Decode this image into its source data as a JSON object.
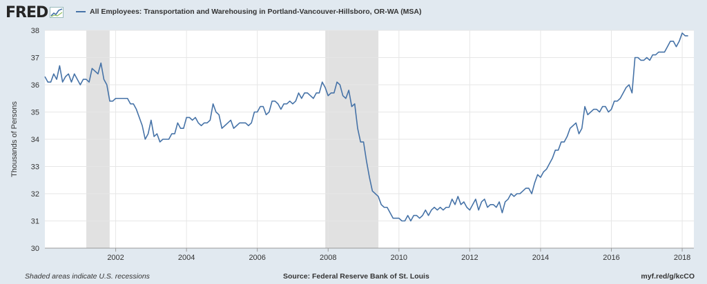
{
  "header": {
    "logo_text": "FRED",
    "legend_label": "All Employees: Transportation and Warehousing in Portland-Vancouver-Hillsboro, OR-WA (MSA)",
    "series_color": "#4572a7"
  },
  "footer": {
    "note": "Shaded areas indicate U.S. recessions",
    "source": "Source: Federal Reserve Bank of St. Louis",
    "link": "myf.red/g/kcCO"
  },
  "chart_data": {
    "type": "line",
    "ylabel": "Thousands of Persons",
    "ylim": [
      30,
      38
    ],
    "yticks": [
      30,
      31,
      32,
      33,
      34,
      35,
      36,
      37,
      38
    ],
    "xlim": [
      2000.0,
      2018.33
    ],
    "xticks": [
      2002,
      2004,
      2006,
      2008,
      2010,
      2012,
      2014,
      2016,
      2018
    ],
    "grid": true,
    "recessions": [
      [
        2001.17,
        2001.83
      ],
      [
        2007.92,
        2009.42
      ]
    ],
    "series": [
      {
        "name": "All Employees: Transportation and Warehousing in Portland-Vancouver-Hillsboro, OR-WA (MSA)",
        "x_start": 2000.0,
        "step": 0.0833333,
        "values": [
          36.3,
          36.1,
          36.1,
          36.4,
          36.2,
          36.7,
          36.1,
          36.3,
          36.4,
          36.1,
          36.4,
          36.2,
          36.0,
          36.2,
          36.2,
          36.1,
          36.6,
          36.5,
          36.4,
          36.8,
          36.2,
          36.0,
          35.4,
          35.4,
          35.5,
          35.5,
          35.5,
          35.5,
          35.5,
          35.3,
          35.3,
          35.1,
          34.8,
          34.5,
          34.0,
          34.2,
          34.7,
          34.1,
          34.2,
          33.9,
          34.0,
          34.0,
          34.0,
          34.2,
          34.2,
          34.6,
          34.4,
          34.4,
          34.8,
          34.8,
          34.7,
          34.8,
          34.6,
          34.5,
          34.6,
          34.6,
          34.7,
          35.3,
          35.0,
          34.9,
          34.4,
          34.5,
          34.6,
          34.7,
          34.4,
          34.5,
          34.6,
          34.6,
          34.6,
          34.5,
          34.6,
          35.0,
          35.0,
          35.2,
          35.2,
          34.9,
          35.0,
          35.4,
          35.4,
          35.3,
          35.1,
          35.3,
          35.3,
          35.4,
          35.3,
          35.4,
          35.7,
          35.5,
          35.7,
          35.7,
          35.6,
          35.5,
          35.7,
          35.7,
          36.1,
          35.9,
          35.6,
          35.7,
          35.7,
          36.1,
          36.0,
          35.6,
          35.5,
          35.8,
          35.2,
          35.3,
          34.4,
          33.9,
          33.9,
          33.2,
          32.6,
          32.1,
          32.0,
          31.9,
          31.6,
          31.5,
          31.5,
          31.3,
          31.1,
          31.1,
          31.1,
          31.0,
          31.0,
          31.2,
          31.0,
          31.2,
          31.2,
          31.1,
          31.2,
          31.4,
          31.2,
          31.4,
          31.5,
          31.4,
          31.5,
          31.4,
          31.5,
          31.5,
          31.8,
          31.6,
          31.9,
          31.6,
          31.7,
          31.5,
          31.4,
          31.6,
          31.8,
          31.4,
          31.7,
          31.8,
          31.5,
          31.6,
          31.6,
          31.5,
          31.7,
          31.3,
          31.7,
          31.8,
          32.0,
          31.9,
          32.0,
          32.0,
          32.1,
          32.2,
          32.2,
          32.0,
          32.4,
          32.7,
          32.6,
          32.8,
          32.9,
          33.1,
          33.3,
          33.6,
          33.6,
          33.9,
          33.9,
          34.1,
          34.4,
          34.5,
          34.6,
          34.2,
          34.4,
          35.2,
          34.9,
          35.0,
          35.1,
          35.1,
          35.0,
          35.2,
          35.2,
          35.0,
          35.1,
          35.4,
          35.4,
          35.5,
          35.7,
          35.9,
          36.0,
          35.7,
          37.0,
          37.0,
          36.9,
          36.9,
          37.0,
          36.9,
          37.1,
          37.1,
          37.2,
          37.2,
          37.2,
          37.4,
          37.6,
          37.6,
          37.4,
          37.6,
          37.9,
          37.8,
          37.8
        ]
      }
    ]
  }
}
